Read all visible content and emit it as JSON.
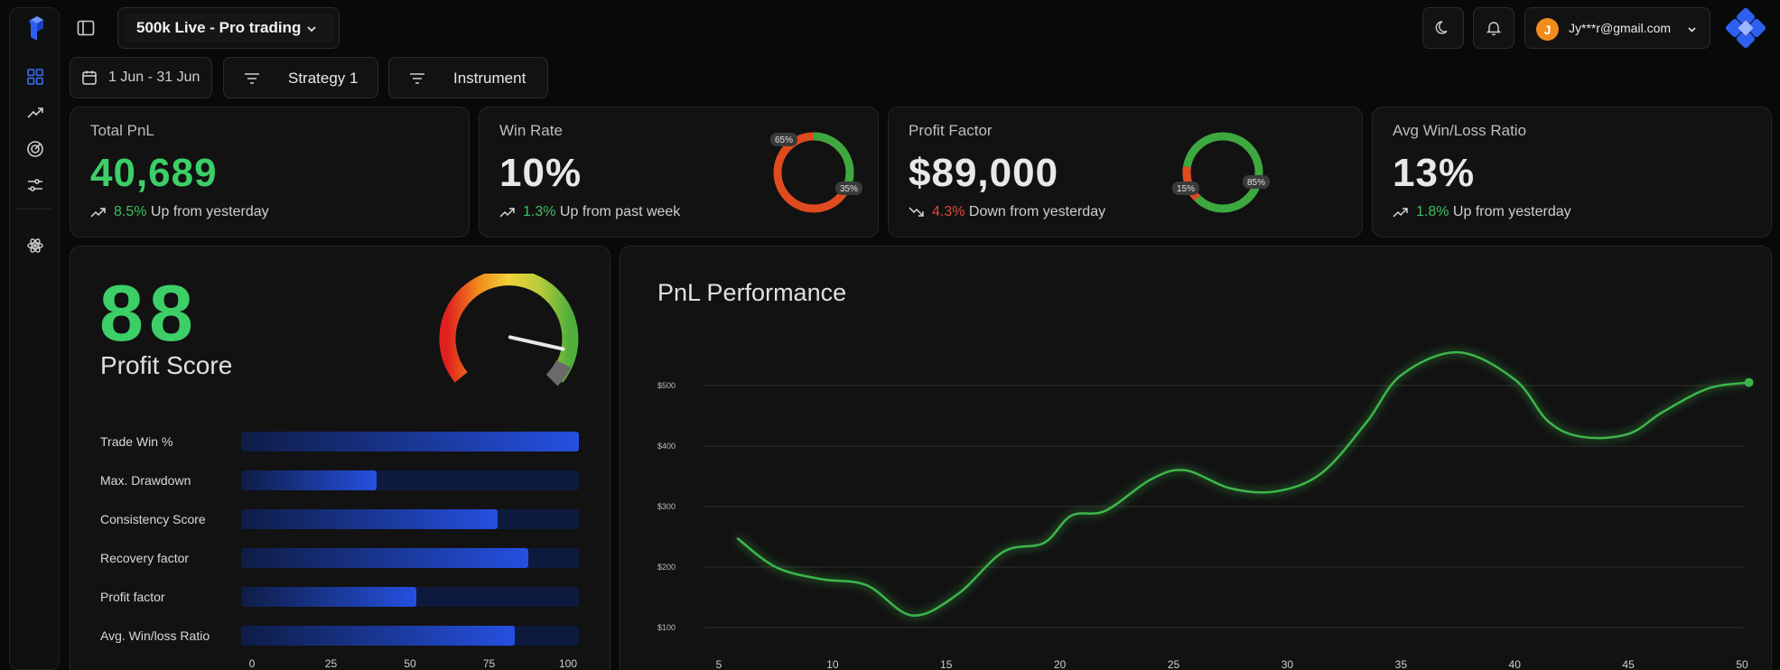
{
  "header": {
    "account_select": "500k Live - Pro trading",
    "user_initial": "J",
    "user_email": "Jy***r@gmail.com"
  },
  "filters": {
    "date_range": "1 Jun - 31 Jun",
    "strategy": "Strategy 1",
    "instrument": "Instrument"
  },
  "cards": {
    "total_pnl": {
      "title": "Total PnL",
      "value": "40,689",
      "pct": "8.5%",
      "trend_text": "Up from yesterday"
    },
    "win_rate": {
      "title": "Win Rate",
      "value": "10%",
      "pct": "1.3%",
      "trend_text": "Up from past week",
      "donut": {
        "red_label": "65%",
        "green_label": "35%",
        "red": 0.65,
        "green": 0.35
      }
    },
    "profit_factor": {
      "title": "Profit Factor",
      "value": "$89,000",
      "pct": "4.3%",
      "trend_text": "Down from yesterday",
      "donut": {
        "red_label": "15%",
        "green_label": "85%",
        "red": 0.15,
        "green": 0.85
      }
    },
    "avg_win_loss": {
      "title": "Avg Win/Loss Ratio",
      "value": "13%",
      "pct": "1.8%",
      "trend_text": "Up from yesterday"
    }
  },
  "profit_score": {
    "score": "88",
    "label": "Profit Score",
    "gauge_level": 0.88,
    "metrics": [
      {
        "label": "Trade Win %",
        "value": 100
      },
      {
        "label": "Max. Drawdown",
        "value": 40
      },
      {
        "label": "Consistency Score",
        "value": 76
      },
      {
        "label": "Recovery factor",
        "value": 85
      },
      {
        "label": "Profit factor",
        "value": 52
      },
      {
        "label": "Avg. Win/loss Ratio",
        "value": 81
      }
    ],
    "axis_ticks": [
      "0",
      "25",
      "50",
      "75",
      "100"
    ]
  },
  "chart_title": "PnL Performance",
  "colors": {
    "accent_green": "#3fbf5f",
    "accent_red": "#e04a3a",
    "bar_blue": "#2550e0",
    "line_green": "#3cb64a"
  },
  "chart_data": {
    "type": "line",
    "title": "PnL Performance",
    "xlabel": "",
    "ylabel": "",
    "x_ticks": [
      5,
      10,
      15,
      20,
      25,
      30,
      35,
      40,
      45,
      50
    ],
    "y_ticks": [
      "$100",
      "$200",
      "$300",
      "$400",
      "$500"
    ],
    "xlim": [
      5,
      50
    ],
    "ylim": [
      100,
      500
    ],
    "grid": true,
    "series": [
      {
        "x": [
          5.8,
          7.5,
          9.5,
          11.5,
          13.5,
          15.5,
          17.5,
          19.3,
          20.5,
          22,
          24,
          25.5,
          27.5,
          29.5,
          31.5,
          33.5,
          35,
          37.5,
          40,
          41.5,
          43,
          45,
          46.5,
          48.5,
          50.3
        ],
        "y": [
          248,
          200,
          180,
          170,
          120,
          155,
          225,
          240,
          285,
          293,
          345,
          360,
          330,
          325,
          355,
          440,
          517,
          555,
          510,
          440,
          415,
          420,
          456,
          495,
          505
        ]
      }
    ]
  }
}
